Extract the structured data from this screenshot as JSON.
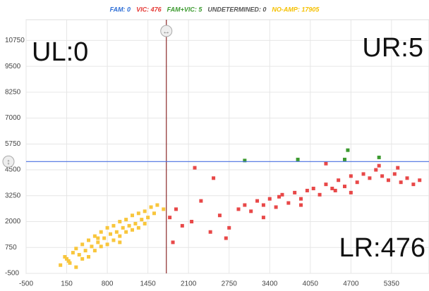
{
  "chart_data": {
    "type": "scatter",
    "legend": [
      {
        "label": "FAM: 0",
        "color": "#2f6fd6"
      },
      {
        "label": "VIC: 476",
        "color": "#e53935"
      },
      {
        "label": "FAM+VIC: 5",
        "color": "#3c9a2f"
      },
      {
        "label": "UNDETERMINED: 0",
        "color": "#555555"
      },
      {
        "label": "NO-AMP: 17905",
        "color": "#f5c000"
      }
    ],
    "quadrant_labels": {
      "ul": "UL:0",
      "ur": "UR:5",
      "lr": "LR:476"
    },
    "xlim": [
      -500,
      5950
    ],
    "ylim": [
      -500,
      11750
    ],
    "xticks": [
      -500,
      150,
      800,
      1450,
      2100,
      2750,
      3400,
      4050,
      4700,
      5350
    ],
    "yticks": [
      -500,
      750,
      2000,
      3250,
      4500,
      5750,
      7000,
      8250,
      9500,
      10750
    ],
    "grid": true,
    "x_threshold": 1745,
    "y_threshold": 4900,
    "series": [
      {
        "color": "#f8c63c",
        "x": [
          50,
          120,
          180,
          250,
          300,
          350,
          400,
          450,
          500,
          550,
          600,
          650,
          700,
          750,
          800,
          850,
          900,
          950,
          1000,
          1050,
          1100,
          1150,
          1200,
          1250,
          1300,
          1350,
          1400,
          1450,
          1500,
          1550,
          1600,
          1700,
          200,
          400,
          600,
          800,
          1000,
          1200,
          1400,
          300,
          500,
          700,
          900,
          1100,
          1300,
          150,
          650,
          1000
        ],
        "values": [
          -100,
          300,
          100,
          500,
          700,
          400,
          900,
          600,
          1100,
          800,
          1300,
          1000,
          1500,
          1200,
          1700,
          1400,
          1800,
          1500,
          2000,
          1700,
          2100,
          1800,
          2300,
          1900,
          2400,
          2100,
          2500,
          2200,
          2700,
          2400,
          2800,
          2600,
          0,
          200,
          600,
          900,
          1300,
          1600,
          1900,
          -200,
          300,
          800,
          1100,
          1500,
          1700,
          200,
          1200,
          1000
        ]
      },
      {
        "color": "#e84848",
        "x": [
          1800,
          1900,
          2000,
          2150,
          2300,
          2450,
          2600,
          2750,
          2900,
          3000,
          3100,
          3200,
          3300,
          3400,
          3500,
          3600,
          3700,
          3800,
          3900,
          4000,
          4100,
          4200,
          4300,
          4400,
          4500,
          4600,
          4700,
          4800,
          4900,
          5000,
          5100,
          5200,
          5300,
          5400,
          5500,
          5600,
          5700,
          5800,
          2200,
          2700,
          3300,
          3900,
          4300,
          4700,
          5150,
          1850,
          3550,
          4450,
          2500,
          5450
        ],
        "values": [
          2200,
          2600,
          1800,
          2000,
          3000,
          1500,
          2300,
          1700,
          2600,
          2800,
          2500,
          3000,
          2800,
          3100,
          2700,
          3300,
          2900,
          3400,
          3100,
          3500,
          3600,
          3300,
          3800,
          3600,
          4000,
          3700,
          4200,
          3900,
          4300,
          4100,
          4500,
          4200,
          4000,
          4300,
          3900,
          4100,
          3800,
          4000,
          4600,
          1200,
          2200,
          2800,
          4800,
          3400,
          4700,
          1000,
          3200,
          3500,
          4100,
          4600
        ]
      },
      {
        "color": "#3c9a2f",
        "x": [
          3000,
          3850,
          4600,
          4650,
          5150
        ],
        "values": [
          4950,
          5000,
          5000,
          5450,
          5100
        ]
      }
    ]
  }
}
